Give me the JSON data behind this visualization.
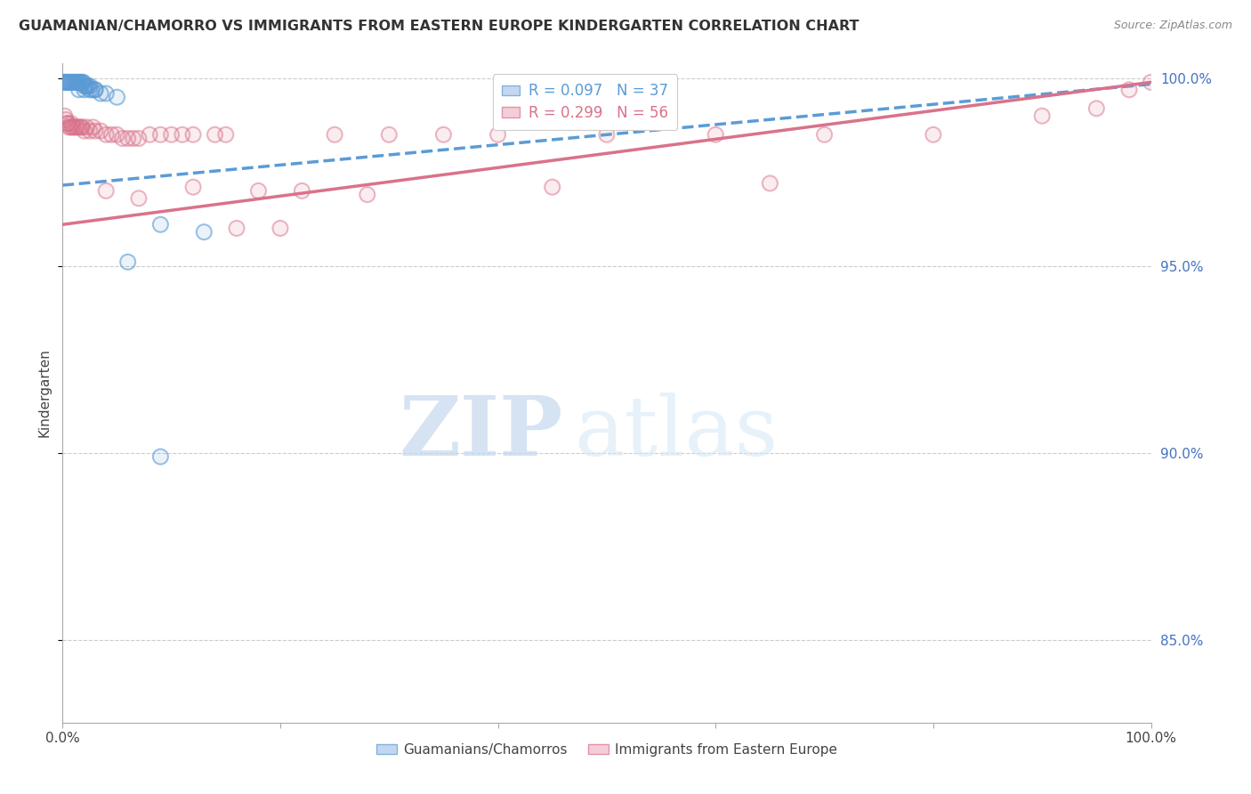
{
  "title": "GUAMANIAN/CHAMORRO VS IMMIGRANTS FROM EASTERN EUROPE KINDERGARTEN CORRELATION CHART",
  "source": "Source: ZipAtlas.com",
  "ylabel": "Kindergarten",
  "bottom_legend": [
    "Guamanians/Chamorros",
    "Immigrants from Eastern Europe"
  ],
  "legend_entries": [
    {
      "label": "R = 0.097   N = 37",
      "color": "#5b9bd5"
    },
    {
      "label": "R = 0.299   N = 56",
      "color": "#d9728a"
    }
  ],
  "xlim": [
    0.0,
    1.0
  ],
  "ylim": [
    0.828,
    1.004
  ],
  "yticks": [
    0.85,
    0.9,
    0.95,
    1.0
  ],
  "xticks": [
    0.0,
    0.2,
    0.4,
    0.6,
    0.8,
    1.0
  ],
  "watermark_zip": "ZIP",
  "watermark_atlas": "atlas",
  "background_color": "#ffffff",
  "blue_color": "#5b9bd5",
  "pink_color": "#d9728a",
  "blue_scatter_x": [
    0.001,
    0.002,
    0.003,
    0.004,
    0.005,
    0.006,
    0.007,
    0.008,
    0.009,
    0.01,
    0.011,
    0.012,
    0.013,
    0.014,
    0.015,
    0.016,
    0.017,
    0.018,
    0.019,
    0.02,
    0.021,
    0.022,
    0.023,
    0.025,
    0.027,
    0.03,
    0.015,
    0.02,
    0.025,
    0.03,
    0.035,
    0.04,
    0.05,
    0.06,
    0.09,
    0.13,
    0.09
  ],
  "blue_scatter_y": [
    0.999,
    0.999,
    0.999,
    0.999,
    0.999,
    0.999,
    0.999,
    0.999,
    0.999,
    0.999,
    0.999,
    0.999,
    0.999,
    0.999,
    0.999,
    0.999,
    0.999,
    0.999,
    0.999,
    0.998,
    0.998,
    0.998,
    0.998,
    0.998,
    0.997,
    0.997,
    0.997,
    0.997,
    0.997,
    0.997,
    0.996,
    0.996,
    0.995,
    0.951,
    0.961,
    0.959,
    0.899
  ],
  "pink_scatter_x": [
    0.002,
    0.003,
    0.004,
    0.005,
    0.006,
    0.007,
    0.008,
    0.009,
    0.01,
    0.012,
    0.013,
    0.015,
    0.017,
    0.018,
    0.02,
    0.022,
    0.025,
    0.028,
    0.03,
    0.035,
    0.04,
    0.045,
    0.05,
    0.055,
    0.06,
    0.065,
    0.07,
    0.08,
    0.09,
    0.1,
    0.11,
    0.12,
    0.14,
    0.15,
    0.16,
    0.2,
    0.25,
    0.3,
    0.35,
    0.4,
    0.5,
    0.6,
    0.7,
    0.8,
    0.9,
    0.95,
    0.98,
    1.0,
    0.04,
    0.07,
    0.12,
    0.18,
    0.22,
    0.28,
    0.45,
    0.65
  ],
  "pink_scatter_y": [
    0.99,
    0.989,
    0.988,
    0.988,
    0.987,
    0.987,
    0.988,
    0.987,
    0.987,
    0.987,
    0.987,
    0.987,
    0.987,
    0.987,
    0.986,
    0.987,
    0.986,
    0.987,
    0.986,
    0.986,
    0.985,
    0.985,
    0.985,
    0.984,
    0.984,
    0.984,
    0.984,
    0.985,
    0.985,
    0.985,
    0.985,
    0.985,
    0.985,
    0.985,
    0.96,
    0.96,
    0.985,
    0.985,
    0.985,
    0.985,
    0.985,
    0.985,
    0.985,
    0.985,
    0.99,
    0.992,
    0.997,
    0.999,
    0.97,
    0.968,
    0.971,
    0.97,
    0.97,
    0.969,
    0.971,
    0.972
  ],
  "blue_trend_x": [
    0.0,
    1.0
  ],
  "blue_trend_y": [
    0.9715,
    0.9985
  ],
  "pink_trend_x": [
    0.0,
    1.0
  ],
  "pink_trend_y": [
    0.961,
    0.999
  ]
}
